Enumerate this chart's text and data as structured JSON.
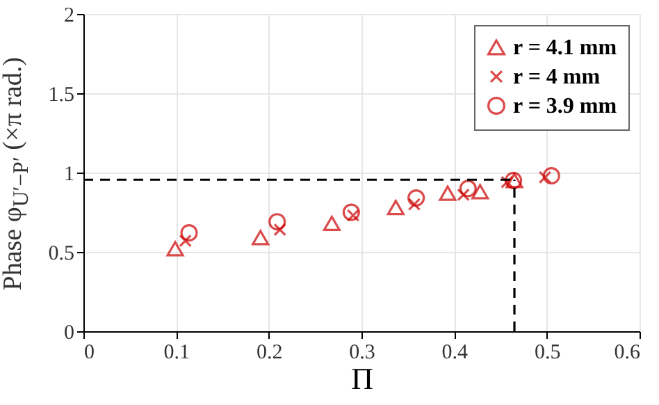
{
  "chart_data": {
    "type": "scatter",
    "xlabel": "Π",
    "ylabel": "Phase φ$_{U′−P′}$ (×π rad.)",
    "xlim": [
      0,
      0.6
    ],
    "xticks": [
      0,
      0.1,
      0.2,
      0.3,
      0.4,
      0.5,
      0.6
    ],
    "ylim": [
      0,
      2
    ],
    "yticks": [
      0,
      0.5,
      1,
      1.5,
      2
    ],
    "grid": true,
    "legend": "top right",
    "ref_lines": [
      {
        "axis": "y",
        "value": 0.955,
        "line_style": "dashed",
        "color": "#000000"
      },
      {
        "axis": "x",
        "value": 0.465,
        "line_style": "dashed",
        "color": "#000000"
      }
    ],
    "series": [
      {
        "name": "r = 4.1 mm",
        "color": "#cc0000",
        "marker": "triangle",
        "x": [
          0.099,
          0.191,
          0.268,
          0.337,
          0.393,
          0.428,
          0.465
        ],
        "values": [
          0.52,
          0.59,
          0.68,
          0.78,
          0.87,
          0.88,
          0.95
        ]
      },
      {
        "name": "r = 4 mm",
        "color": "#cc0000",
        "marker": "cross",
        "x": [
          0.11,
          0.212,
          0.291,
          0.357,
          0.41,
          0.457,
          0.498
        ],
        "values": [
          0.57,
          0.64,
          0.73,
          0.8,
          0.86,
          0.94,
          0.97
        ]
      },
      {
        "name": "r = 3.9 mm",
        "color": "#cc0000",
        "marker": "circle",
        "x": [
          0.114,
          0.209,
          0.289,
          0.359,
          0.415,
          0.464,
          0.505
        ],
        "values": [
          0.62,
          0.69,
          0.75,
          0.84,
          0.9,
          0.95,
          0.98
        ]
      }
    ]
  }
}
